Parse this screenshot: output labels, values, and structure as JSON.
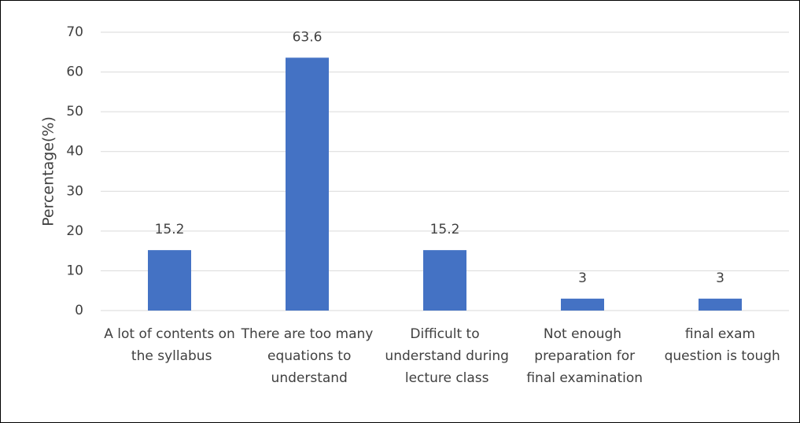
{
  "chart_data": {
    "type": "bar",
    "y_label": "Percentage(%)",
    "categories": [
      "A lot of contents on the syllabus",
      "There are too many equations to understand",
      "Difficult to understand during lecture class",
      "Not enough preparation for final examination",
      "final exam question is tough"
    ],
    "values": [
      15.2,
      63.6,
      15.2,
      3,
      3
    ],
    "color": "#4472c4",
    "ylim": [
      0,
      70
    ],
    "yticks": [
      0,
      10,
      20,
      30,
      40,
      50,
      60,
      70
    ],
    "grid": true
  }
}
